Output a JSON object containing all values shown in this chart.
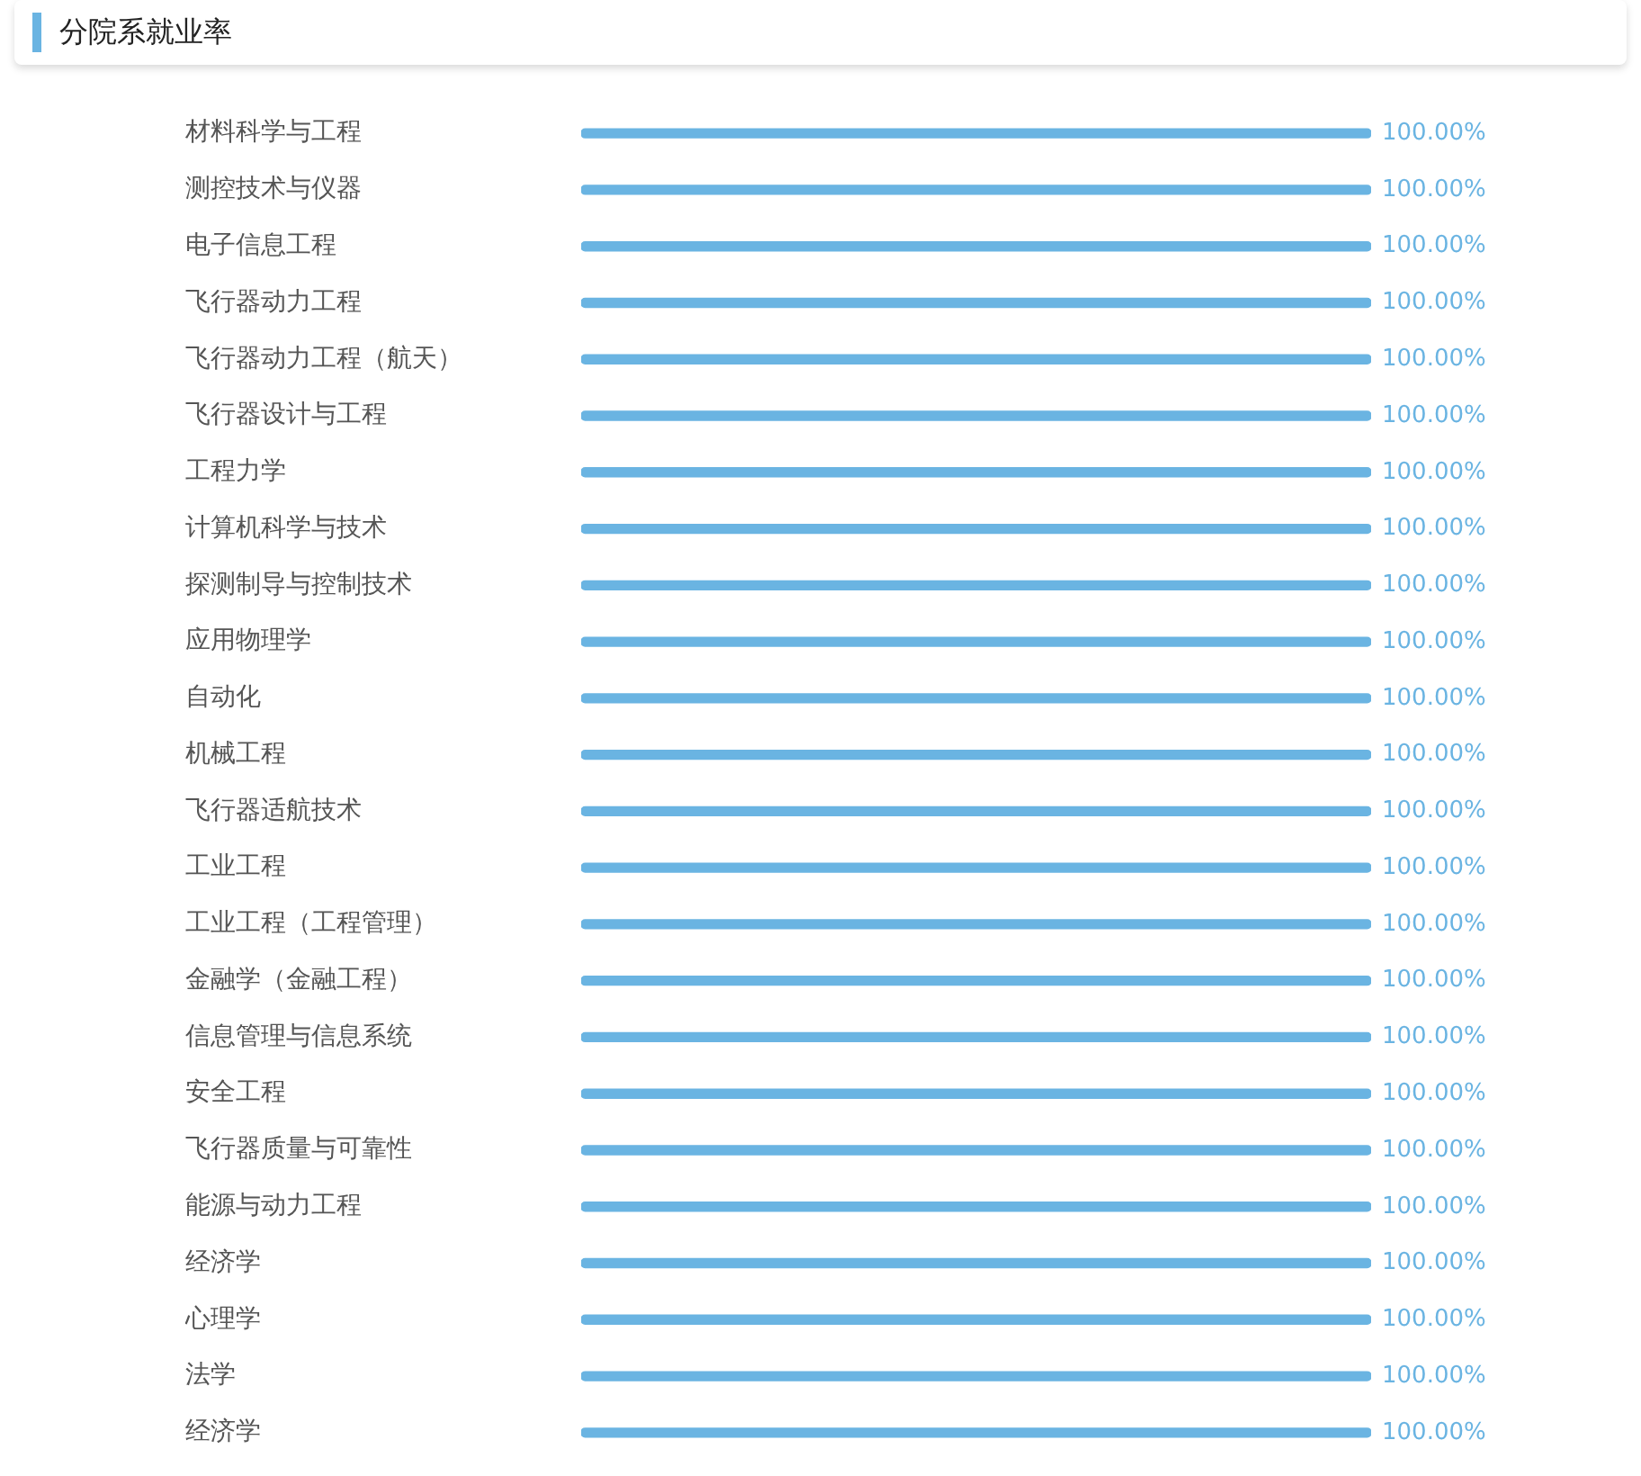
{
  "chart_data": {
    "type": "bar",
    "orientation": "horizontal",
    "title": "分院系就业率",
    "categories": [
      "材料科学与工程",
      "测控技术与仪器",
      "电子信息工程",
      "飞行器动力工程",
      "飞行器动力工程（航天）",
      "飞行器设计与工程",
      "工程力学",
      "计算机科学与技术",
      "探测制导与控制技术",
      "应用物理学",
      "自动化",
      "机械工程",
      "飞行器适航技术",
      "工业工程",
      "工业工程（工程管理）",
      "金融学（金融工程）",
      "信息管理与信息系统",
      "安全工程",
      "飞行器质量与可靠性",
      "能源与动力工程",
      "经济学",
      "心理学",
      "法学",
      "经济学"
    ],
    "values": [
      100,
      100,
      100,
      100,
      100,
      100,
      100,
      100,
      100,
      100,
      100,
      100,
      100,
      100,
      100,
      100,
      100,
      100,
      100,
      100,
      100,
      100,
      100,
      100
    ],
    "value_labels": [
      "100.00%",
      "100.00%",
      "100.00%",
      "100.00%",
      "100.00%",
      "100.00%",
      "100.00%",
      "100.00%",
      "100.00%",
      "100.00%",
      "100.00%",
      "100.00%",
      "100.00%",
      "100.00%",
      "100.00%",
      "100.00%",
      "100.00%",
      "100.00%",
      "100.00%",
      "100.00%",
      "100.00%",
      "100.00%",
      "100.00%",
      "100.00%"
    ],
    "color": "#6ab4e2",
    "legend": false
  }
}
